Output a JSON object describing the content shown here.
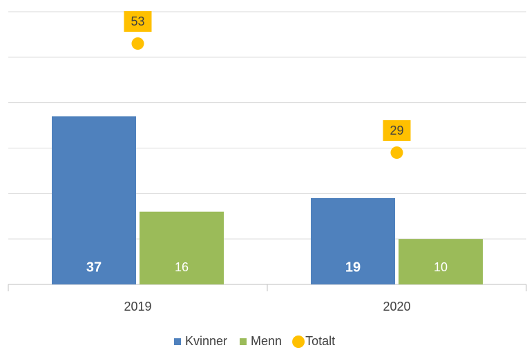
{
  "chart_data": {
    "type": "bar",
    "categories": [
      "2019",
      "2020"
    ],
    "series": [
      {
        "name": "Kvinner",
        "color": "#4f81bd",
        "values": [
          37,
          19
        ]
      },
      {
        "name": "Menn",
        "color": "#9bbb59",
        "values": [
          16,
          10
        ]
      },
      {
        "name": "Totalt",
        "color": "#ffc000",
        "type": "dot",
        "values": [
          53,
          29
        ]
      }
    ],
    "ylim": [
      0,
      60
    ],
    "yticks": [
      0,
      10,
      20,
      30,
      40,
      50,
      60
    ],
    "grid": true,
    "legend": "bottom"
  }
}
